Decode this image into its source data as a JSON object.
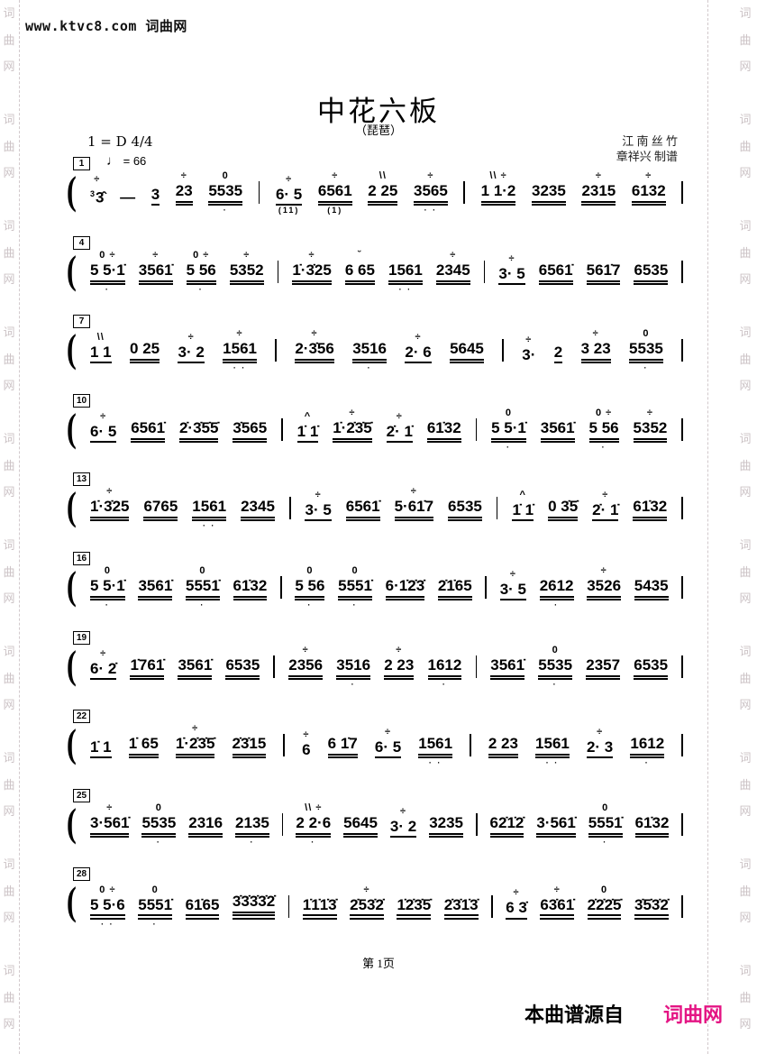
{
  "watermark": {
    "top_text": "www.ktvc8.com 词曲网",
    "side_chars": [
      "词",
      "曲",
      "网"
    ],
    "char_color": "#ccc3c6"
  },
  "header": {
    "title": "中花六板",
    "subtitle": "（琵琶）",
    "credit_genre": "江 南 丝 竹",
    "credit_arranger": "章祥兴 制谱",
    "key_signature": "1 = D 4/4",
    "tempo_note": "♩",
    "tempo_value": "= 66"
  },
  "score": {
    "lines": [
      {
        "num": "1",
        "measures": [
          [
            {
              "t": "3̂",
              "g": "3",
              "o": "÷"
            },
            {
              "t": "—"
            },
            {
              "t": "3",
              "u": 1
            },
            {
              "t": "23",
              "u": 2,
              "o": "÷"
            },
            {
              "t": "5535",
              "u": 2,
              "o": "0",
              "b": "·"
            }
          ],
          [
            {
              "t": "6· 5",
              "u": 1,
              "o": "÷",
              "b": "(11)"
            },
            {
              "t": "6561",
              "u": 2,
              "o": "÷",
              "b": "(1)"
            },
            {
              "t": "2 25",
              "u": 2,
              "o": "\\\\"
            },
            {
              "t": "3565",
              "u": 2,
              "o": "÷",
              "b": "· ·"
            }
          ],
          [
            {
              "t": "1 1·2",
              "u": 2,
              "o": "\\\\ ÷"
            },
            {
              "t": "3235",
              "u": 2
            },
            {
              "t": "2315",
              "u": 2,
              "o": "÷"
            },
            {
              "t": "6132",
              "u": 2,
              "o": "÷"
            }
          ]
        ]
      },
      {
        "num": "4",
        "measures": [
          [
            {
              "t": "5 5·1̇",
              "u": 2,
              "o": "0 ÷",
              "b": "·"
            },
            {
              "t": "3561̇",
              "u": 2,
              "o": "÷"
            },
            {
              "t": "5 56",
              "u": 2,
              "o": "0 ÷",
              "b": "·"
            },
            {
              "t": "5352",
              "u": 2,
              "o": "÷"
            }
          ],
          [
            {
              "t": "1̇·3̇25",
              "u": 2,
              "o": "÷"
            },
            {
              "t": "6 65",
              "u": 2,
              "o": "˘"
            },
            {
              "t": "1561",
              "u": 2,
              "b": "· ·"
            },
            {
              "t": "2345",
              "u": 2,
              "o": "÷"
            }
          ],
          [
            {
              "t": "3· 5",
              "u": 1,
              "o": "÷"
            },
            {
              "t": "6561̇",
              "u": 2
            },
            {
              "t": "561̇7",
              "u": 2
            },
            {
              "t": "6535",
              "u": 2
            }
          ]
        ]
      },
      {
        "num": "7",
        "measures": [
          [
            {
              "t": "1 1",
              "u": 1,
              "o": "\\\\"
            },
            {
              "t": "0 25",
              "u": 2
            },
            {
              "t": "3· 2",
              "u": 1,
              "o": "÷"
            },
            {
              "t": "1561",
              "u": 2,
              "o": "÷",
              "b": "· ·"
            }
          ],
          [
            {
              "t": "2·3̇56",
              "u": 2,
              "o": "÷"
            },
            {
              "t": "3516",
              "u": 2,
              "b": "·"
            },
            {
              "t": "2· 6",
              "u": 1,
              "o": "÷"
            },
            {
              "t": "5645",
              "u": 2
            }
          ],
          [
            {
              "t": "3·",
              "o": "÷"
            },
            {
              "t": "2",
              "u": 1
            },
            {
              "t": "3 23",
              "u": 2,
              "o": "÷"
            },
            {
              "t": "5535",
              "u": 2,
              "o": "0",
              "b": "·"
            }
          ]
        ]
      },
      {
        "num": "10",
        "measures": [
          [
            {
              "t": "6· 5",
              "u": 1,
              "o": "÷"
            },
            {
              "t": "6561̇",
              "u": 2
            },
            {
              "t": "2̇·3̇5̇5̇",
              "u": 2
            },
            {
              "t": "3̇565",
              "u": 2
            }
          ],
          [
            {
              "t": "1̇ 1̇",
              "u": 1,
              "o": "^"
            },
            {
              "t": "1̇·2̇3̇5̇",
              "u": 2,
              "o": "÷"
            },
            {
              "t": "2̇· 1̇",
              "u": 1,
              "o": "÷"
            },
            {
              "t": "61̇32",
              "u": 2
            }
          ],
          [
            {
              "t": "5 5·1̇",
              "u": 2,
              "o": "0",
              "b": "·"
            },
            {
              "t": "3561̇",
              "u": 2
            },
            {
              "t": "5 56",
              "u": 2,
              "o": "0 ÷",
              "b": "·"
            },
            {
              "t": "5352",
              "u": 2,
              "o": "÷"
            }
          ]
        ]
      },
      {
        "num": "13",
        "measures": [
          [
            {
              "t": "1̇·3̇25",
              "u": 2,
              "o": "÷"
            },
            {
              "t": "6765",
              "u": 2
            },
            {
              "t": "1561",
              "u": 2,
              "b": "· ·"
            },
            {
              "t": "2345",
              "u": 2
            }
          ],
          [
            {
              "t": "3· 5",
              "u": 1,
              "o": "÷"
            },
            {
              "t": "6561̇",
              "u": 2
            },
            {
              "t": "5·61̇7",
              "u": 2,
              "o": "÷"
            },
            {
              "t": "6535",
              "u": 2
            }
          ],
          [
            {
              "t": "1̇ 1̇",
              "u": 1,
              "o": "^"
            },
            {
              "t": "0 3̇5̇",
              "u": 2
            },
            {
              "t": "2̇· 1̇",
              "u": 1,
              "o": "÷"
            },
            {
              "t": "61̇32",
              "u": 2
            }
          ]
        ]
      },
      {
        "num": "16",
        "measures": [
          [
            {
              "t": "5 5·1̇",
              "u": 2,
              "o": "0",
              "b": "·"
            },
            {
              "t": "3561̇",
              "u": 2
            },
            {
              "t": "5551̇",
              "u": 2,
              "o": "0",
              "b": "·"
            },
            {
              "t": "61̇32",
              "u": 2
            }
          ],
          [
            {
              "t": "5 56",
              "u": 2,
              "o": "0",
              "b": "·"
            },
            {
              "t": "5551̇",
              "u": 2,
              "o": "0",
              "b": "·"
            },
            {
              "t": "6·1̇2̇3̇",
              "u": 2
            },
            {
              "t": "2̇1̇65",
              "u": 2
            }
          ],
          [
            {
              "t": "3· 5",
              "u": 1,
              "o": "÷"
            },
            {
              "t": "2612",
              "u": 2,
              "b": "·"
            },
            {
              "t": "3526",
              "u": 2,
              "o": "÷"
            },
            {
              "t": "5435",
              "u": 2
            }
          ]
        ]
      },
      {
        "num": "19",
        "measures": [
          [
            {
              "t": "6· 2̇",
              "u": 1,
              "o": "÷"
            },
            {
              "t": "1̇761̇",
              "u": 2
            },
            {
              "t": "3561̇",
              "u": 2
            },
            {
              "t": "6535",
              "u": 2
            }
          ],
          [
            {
              "t": "2356",
              "u": 2,
              "o": "÷"
            },
            {
              "t": "3516",
              "u": 2,
              "b": "·"
            },
            {
              "t": "2 23",
              "u": 2,
              "o": "÷"
            },
            {
              "t": "1612",
              "u": 2,
              "b": "·"
            }
          ],
          [
            {
              "t": "3561̇",
              "u": 2
            },
            {
              "t": "5535",
              "u": 2,
              "o": "0",
              "b": "·"
            },
            {
              "t": "2357",
              "u": 2
            },
            {
              "t": "6535",
              "u": 2
            }
          ]
        ]
      },
      {
        "num": "22",
        "measures": [
          [
            {
              "t": "1̇ 1",
              "u": 1
            },
            {
              "t": "1̇ 65",
              "u": 2
            },
            {
              "t": "1̇·2̇3̇5̇",
              "u": 2,
              "o": "÷"
            },
            {
              "t": "2̇3̇15",
              "u": 2
            }
          ],
          [
            {
              "t": "6",
              "o": "÷"
            },
            {
              "t": "6 1̇7",
              "u": 2
            },
            {
              "t": "6· 5",
              "u": 1,
              "o": "÷"
            },
            {
              "t": "1561",
              "u": 2,
              "b": "· ·"
            }
          ],
          [
            {
              "t": "2 23",
              "u": 2
            },
            {
              "t": "1561",
              "u": 2,
              "b": "· ·"
            },
            {
              "t": "2· 3",
              "u": 1,
              "o": "÷"
            },
            {
              "t": "1612",
              "u": 2,
              "b": "·"
            }
          ]
        ]
      },
      {
        "num": "25",
        "measures": [
          [
            {
              "t": "3·561̇",
              "u": 2,
              "o": "÷"
            },
            {
              "t": "5535",
              "u": 2,
              "o": "0",
              "b": "·"
            },
            {
              "t": "2316",
              "u": 2
            },
            {
              "t": "2135",
              "u": 2,
              "b": "·"
            }
          ],
          [
            {
              "t": "2 2·6",
              "u": 2,
              "o": "\\\\ ÷",
              "b": "·"
            },
            {
              "t": "5645",
              "u": 2
            },
            {
              "t": "3· 2",
              "u": 1,
              "o": "÷"
            },
            {
              "t": "3235",
              "u": 2
            }
          ],
          [
            {
              "t": "62̇1̇2̇",
              "u": 2
            },
            {
              "t": "3·561̇",
              "u": 2
            },
            {
              "t": "5551̇",
              "u": 2,
              "o": "0",
              "b": "·"
            },
            {
              "t": "61̇32",
              "u": 2
            }
          ]
        ]
      },
      {
        "num": "28",
        "measures": [
          [
            {
              "t": "5 5·6",
              "u": 2,
              "o": "0 ÷",
              "b": "· ·"
            },
            {
              "t": "5551̇",
              "u": 2,
              "o": "0",
              "b": "·"
            },
            {
              "t": "61̇65",
              "u": 2
            },
            {
              "t": "3̇3̇3̇3̇2̇",
              "u": 3
            }
          ],
          [
            {
              "t": "1̇1̇1̇3̇",
              "u": 2
            },
            {
              "t": "2̇53̇2̇",
              "u": 2,
              "o": "÷"
            },
            {
              "t": "1̇2̇3̇5̇",
              "u": 2
            },
            {
              "t": "2̇3̇1̇3̇",
              "u": 2
            }
          ],
          [
            {
              "t": "6 3̇",
              "u": 1,
              "o": "÷"
            },
            {
              "t": "63̇61̇",
              "u": 2,
              "o": "÷"
            },
            {
              "t": "2̇2̇2̇5̇",
              "u": 2,
              "o": "0"
            },
            {
              "t": "3̇5̇3̇2̇",
              "u": 2
            }
          ]
        ]
      }
    ]
  },
  "footer": {
    "page_label": "第 1页",
    "source_label": "本曲谱源自",
    "source_site": "词曲网",
    "site_color": "#e41584"
  }
}
